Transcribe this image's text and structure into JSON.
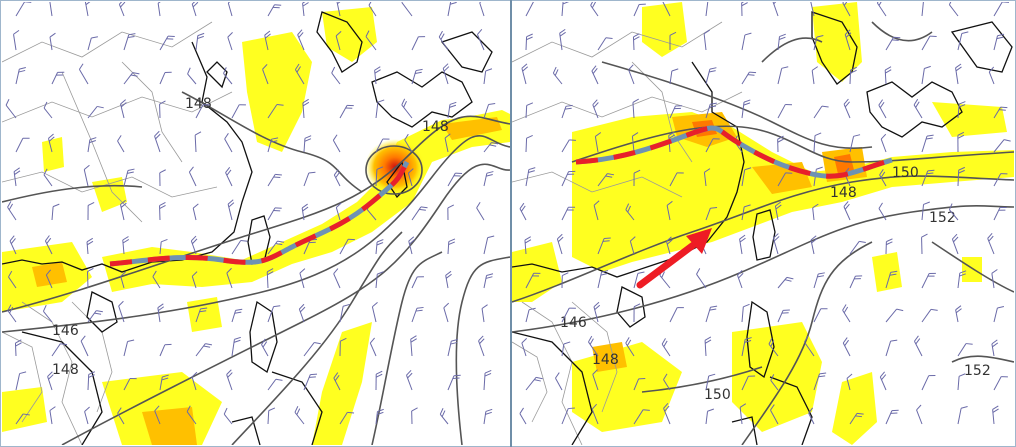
{
  "colors": {
    "precip_light": "#ffff20",
    "precip_mid": "#ffc000",
    "precip_high": "#ff7800",
    "precip_core": "#d01010",
    "contour": "#555555",
    "coastline": "#111111",
    "border": "#9a9a9a",
    "wind_barb": "#6a6aa8",
    "front_red": "#e8202a",
    "front_blue": "#6e92b4",
    "arrow": "#ee1c24"
  },
  "panels": [
    {
      "id": "left",
      "contour_labels": [
        "148",
        "148",
        "146",
        "148"
      ]
    },
    {
      "id": "right",
      "contour_labels": [
        "150",
        "148",
        "152",
        "146",
        "148",
        "150",
        "152"
      ]
    }
  ],
  "icons": [
    "wind-barb-icon",
    "arrow-icon"
  ]
}
